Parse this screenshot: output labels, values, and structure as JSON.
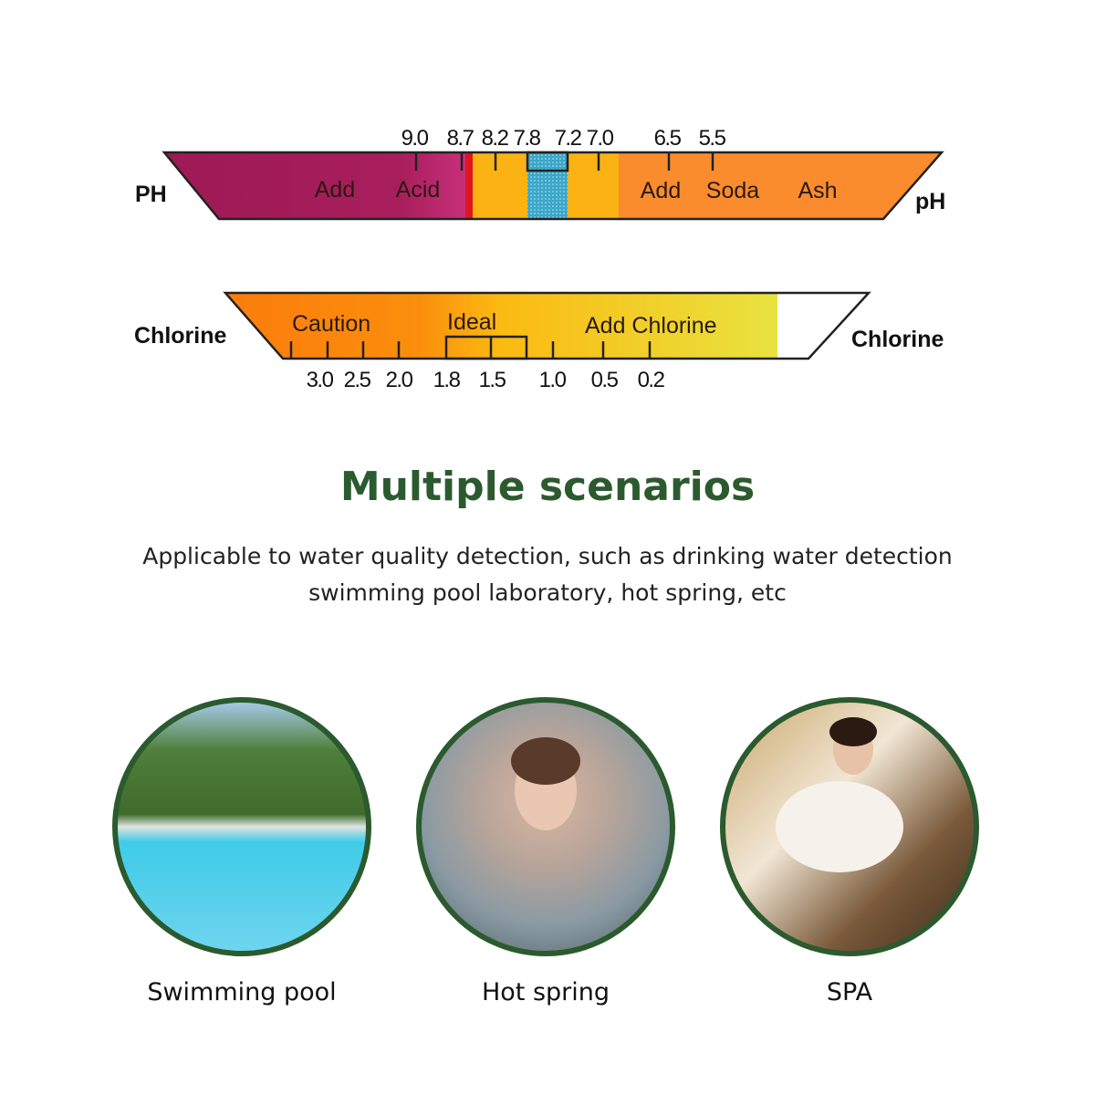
{
  "ph_scale": {
    "left_label": "PH",
    "right_label": "pH",
    "tick_labels": [
      "9.0",
      "8.7",
      "8.2",
      "7.8",
      "7.2",
      "7.0",
      "6.5",
      "5.5"
    ],
    "zone_words": [
      "Add",
      "Acid",
      "Add",
      "Soda",
      "Ash"
    ],
    "colors": {
      "acid": "#9e1a55",
      "acid_light": "#c8307a",
      "red": "#e0161e",
      "yellow": "#fbb313",
      "ideal": "#3ba7c9",
      "orange": "#fa8c2e"
    }
  },
  "chlorine_scale": {
    "left_label": "Chlorine",
    "right_label": "Chlorine",
    "zones": [
      "Caution",
      "Ideal",
      "Add Chlorine"
    ],
    "tick_labels": [
      "3.0",
      "2.5",
      "2.0",
      "1.8",
      "1.5",
      "1.0",
      "0.5",
      "0.2"
    ],
    "colors": {
      "start": "#fb7d0c",
      "mid": "#fbb812",
      "end": "#e8e340"
    }
  },
  "heading": "Multiple scenarios",
  "description": [
    "Applicable to water quality detection, such as drinking water detection",
    "swimming pool laboratory, hot spring, etc"
  ],
  "scenarios": [
    {
      "label": "Swimming pool",
      "image": "swimming-pool-photo"
    },
    {
      "label": "Hot spring",
      "image": "hot-spring-photo"
    },
    {
      "label": "SPA",
      "image": "spa-photo"
    }
  ],
  "accent_color": "#2b5a2e"
}
